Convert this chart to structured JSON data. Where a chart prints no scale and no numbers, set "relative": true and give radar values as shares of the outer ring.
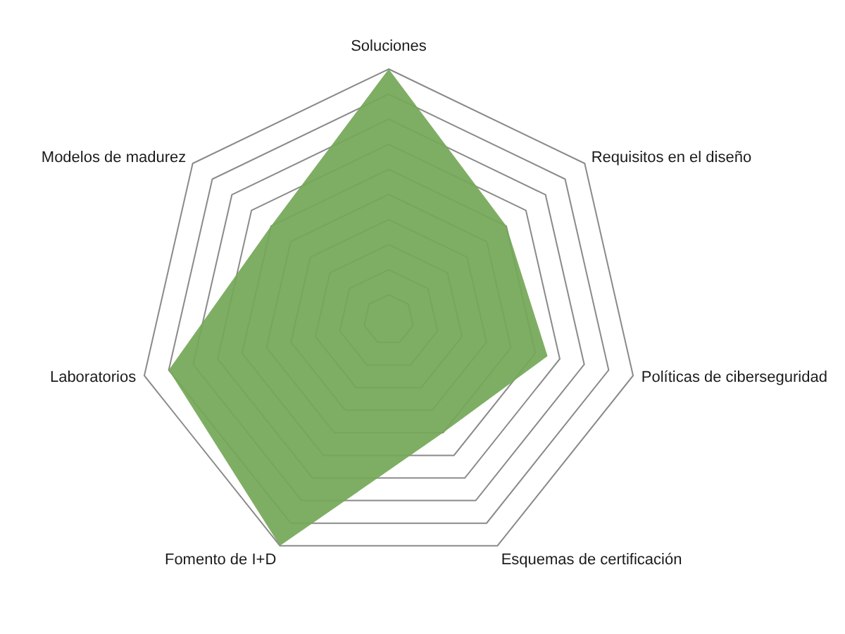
{
  "chart_data": {
    "type": "radar",
    "relative": true,
    "categories": [
      "Soluciones",
      "Requisitos en el diseño",
      "Políticas de ciberseguridad",
      "Esquemas de certificación",
      "Fomento de I+D",
      "Laboratorios",
      "Modelos de madurez"
    ],
    "series": [
      {
        "color": "#74a857",
        "values": [
          1,
          0.6,
          0.65,
          0.5,
          1,
          0.9,
          0.6
        ]
      }
    ],
    "grid": true
  }
}
